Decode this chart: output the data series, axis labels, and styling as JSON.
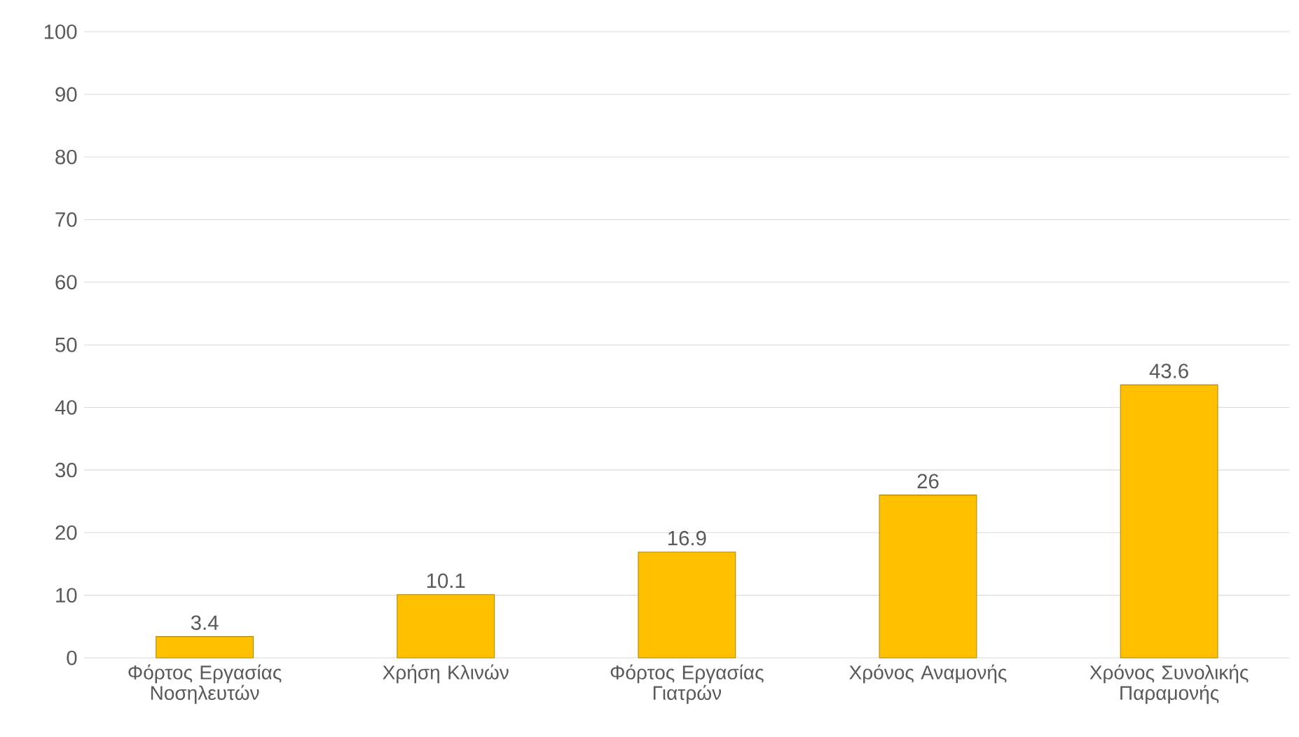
{
  "chart_data": {
    "type": "bar",
    "categories": [
      "Φόρτος Εργασίας Νοσηλευτών",
      "Χρήση Κλινών",
      "Φόρτος Εργασίας Γιατρών",
      "Χρόνος Αναμονής",
      "Χρόνος Συνολικής Παραμονής"
    ],
    "values": [
      3.4,
      10.1,
      16.9,
      26,
      43.6
    ],
    "value_labels": [
      "3.4",
      "10.1",
      "16.9",
      "26",
      "43.6"
    ],
    "color": "#ffc000",
    "ylim": [
      0,
      100
    ],
    "yticks": [
      0,
      10,
      20,
      30,
      40,
      50,
      60,
      70,
      80,
      90,
      100
    ],
    "grid": "y"
  }
}
